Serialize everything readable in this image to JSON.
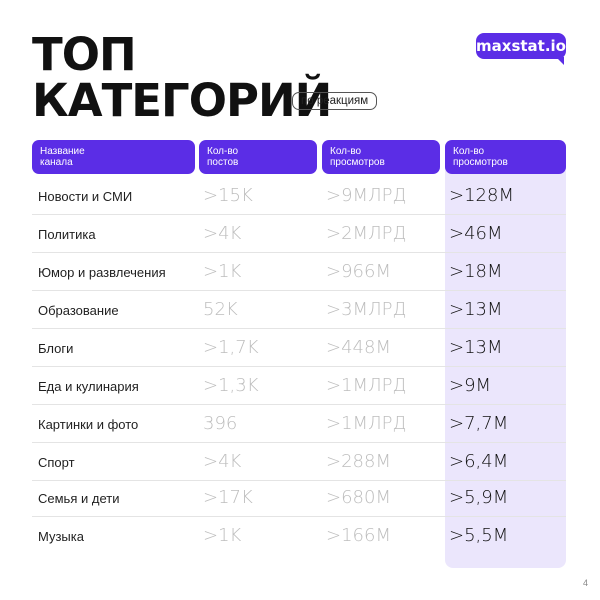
{
  "title": {
    "line1": "ТОП",
    "line2": "КАТЕГОРИЙ"
  },
  "subtitle": "по реакциям",
  "logo": "maxstat.io",
  "headers": [
    {
      "l1": "Название",
      "l2": "канала"
    },
    {
      "l1": "Кол-во",
      "l2": "постов"
    },
    {
      "l1": "Кол-во",
      "l2": "просмотров"
    },
    {
      "l1": "Кол-во",
      "l2": "просмотров"
    }
  ],
  "rows": [
    {
      "name": "Новости и СМИ",
      "posts": ">15K",
      "views": ">9МЛРД",
      "reactions": ">128M"
    },
    {
      "name": "Политика",
      "posts": ">4K",
      "views": ">2МЛРД",
      "reactions": ">46M"
    },
    {
      "name": "Юмор и развлечения",
      "posts": ">1K",
      "views": ">966M",
      "reactions": ">18M"
    },
    {
      "name": "Образование",
      "posts": "52K",
      "views": ">3МЛРД",
      "reactions": ">13M"
    },
    {
      "name": "Блоги",
      "posts": ">1,7K",
      "views": ">448M",
      "reactions": ">13M"
    },
    {
      "name": "Еда и кулинария",
      "posts": ">1,3K",
      "views": ">1МЛРД",
      "reactions": ">9M"
    },
    {
      "name": "Картинки и фото",
      "posts": "396",
      "views": ">1МЛРД",
      "reactions": ">7,7M"
    },
    {
      "name": "Спорт",
      "posts": ">4K",
      "views": ">288M",
      "reactions": ">6,4M"
    },
    {
      "name": "Семья и дети",
      "posts": ">17K",
      "views": ">680M",
      "reactions": ">5,9M"
    },
    {
      "name": "Музыка",
      "posts": ">1K",
      "views": ">166M",
      "reactions": ">5,5M"
    }
  ],
  "page_number": "4",
  "colors": {
    "accent": "#5b2de6",
    "highlight": "#ebe6fc",
    "muted_text": "#bdbdbd"
  }
}
